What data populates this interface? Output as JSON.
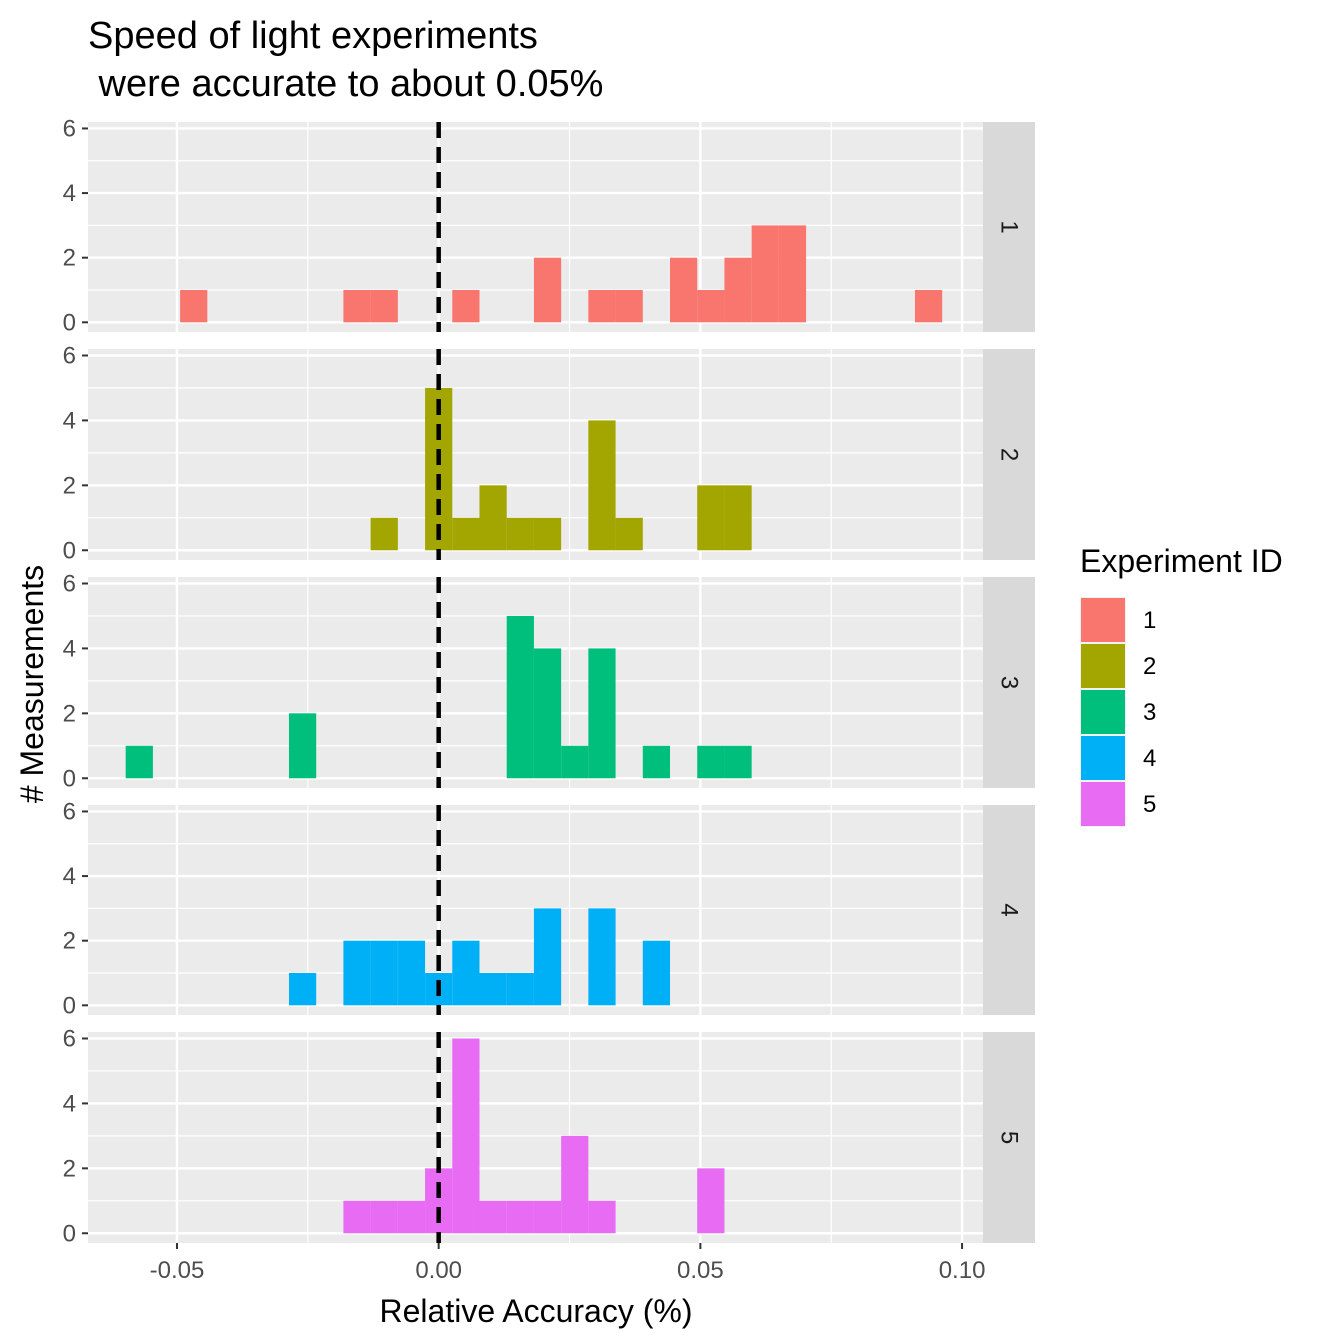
{
  "chart_data": {
    "type": "bar",
    "subtype": "faceted histogram",
    "title_lines": [
      "Speed of light experiments",
      " were accurate to about 0.05%"
    ],
    "xlabel": "Relative Accuracy (%)",
    "ylabel": "# Measurements",
    "xlim": [
      -0.067,
      0.104
    ],
    "ylim": [
      -0.3,
      6.2
    ],
    "x_ticks": [
      -0.05,
      0.0,
      0.05,
      0.1
    ],
    "x_tick_labels": [
      "-0.05",
      "0.00",
      "0.05",
      "0.10"
    ],
    "y_ticks": [
      0,
      2,
      4,
      6
    ],
    "y_tick_labels": [
      "0",
      "2",
      "4",
      "6"
    ],
    "bin_width": 0.0052,
    "reference_line": {
      "x": 0.0,
      "style": "dashed",
      "color": "#000000"
    },
    "grid": true,
    "facet_layout": "rows",
    "legend": {
      "title": "Experiment ID",
      "position": "right",
      "entries": [
        {
          "label": "1",
          "color": "#F8766D"
        },
        {
          "label": "2",
          "color": "#A3A500"
        },
        {
          "label": "3",
          "color": "#00BF7D"
        },
        {
          "label": "4",
          "color": "#00B0F6"
        },
        {
          "label": "5",
          "color": "#E76BF3"
        }
      ]
    },
    "series": [
      {
        "name": "1",
        "color": "#F8766D",
        "bins": [
          {
            "x": -0.0468,
            "count": 1
          },
          {
            "x": -0.0156,
            "count": 1
          },
          {
            "x": -0.0104,
            "count": 1
          },
          {
            "x": 0.0052,
            "count": 1
          },
          {
            "x": 0.0208,
            "count": 2
          },
          {
            "x": 0.0312,
            "count": 1
          },
          {
            "x": 0.0364,
            "count": 1
          },
          {
            "x": 0.0468,
            "count": 2
          },
          {
            "x": 0.052,
            "count": 1
          },
          {
            "x": 0.0572,
            "count": 2
          },
          {
            "x": 0.0624,
            "count": 3
          },
          {
            "x": 0.0676,
            "count": 3
          },
          {
            "x": 0.0936,
            "count": 1
          }
        ]
      },
      {
        "name": "2",
        "color": "#A3A500",
        "bins": [
          {
            "x": -0.0104,
            "count": 1
          },
          {
            "x": 0.0,
            "count": 5
          },
          {
            "x": 0.0052,
            "count": 1
          },
          {
            "x": 0.0104,
            "count": 2
          },
          {
            "x": 0.0156,
            "count": 1
          },
          {
            "x": 0.0208,
            "count": 1
          },
          {
            "x": 0.0312,
            "count": 4
          },
          {
            "x": 0.0364,
            "count": 1
          },
          {
            "x": 0.052,
            "count": 2
          },
          {
            "x": 0.0572,
            "count": 2
          }
        ]
      },
      {
        "name": "3",
        "color": "#00BF7D",
        "bins": [
          {
            "x": -0.0572,
            "count": 1
          },
          {
            "x": -0.026,
            "count": 2
          },
          {
            "x": 0.0156,
            "count": 5
          },
          {
            "x": 0.0208,
            "count": 4
          },
          {
            "x": 0.026,
            "count": 1
          },
          {
            "x": 0.0312,
            "count": 4
          },
          {
            "x": 0.0416,
            "count": 1
          },
          {
            "x": 0.052,
            "count": 1
          },
          {
            "x": 0.0572,
            "count": 1
          }
        ]
      },
      {
        "name": "4",
        "color": "#00B0F6",
        "bins": [
          {
            "x": -0.026,
            "count": 1
          },
          {
            "x": -0.0156,
            "count": 2
          },
          {
            "x": -0.0104,
            "count": 2
          },
          {
            "x": -0.0052,
            "count": 2
          },
          {
            "x": 0.0,
            "count": 1
          },
          {
            "x": 0.0052,
            "count": 2
          },
          {
            "x": 0.0104,
            "count": 1
          },
          {
            "x": 0.0156,
            "count": 1
          },
          {
            "x": 0.0208,
            "count": 3
          },
          {
            "x": 0.0312,
            "count": 3
          },
          {
            "x": 0.0416,
            "count": 2
          }
        ]
      },
      {
        "name": "5",
        "color": "#E76BF3",
        "bins": [
          {
            "x": -0.0156,
            "count": 1
          },
          {
            "x": -0.0104,
            "count": 1
          },
          {
            "x": -0.0052,
            "count": 1
          },
          {
            "x": 0.0,
            "count": 2
          },
          {
            "x": 0.0052,
            "count": 6
          },
          {
            "x": 0.0104,
            "count": 1
          },
          {
            "x": 0.0156,
            "count": 1
          },
          {
            "x": 0.0208,
            "count": 1
          },
          {
            "x": 0.026,
            "count": 3
          },
          {
            "x": 0.0312,
            "count": 1
          },
          {
            "x": 0.052,
            "count": 2
          }
        ]
      }
    ]
  }
}
